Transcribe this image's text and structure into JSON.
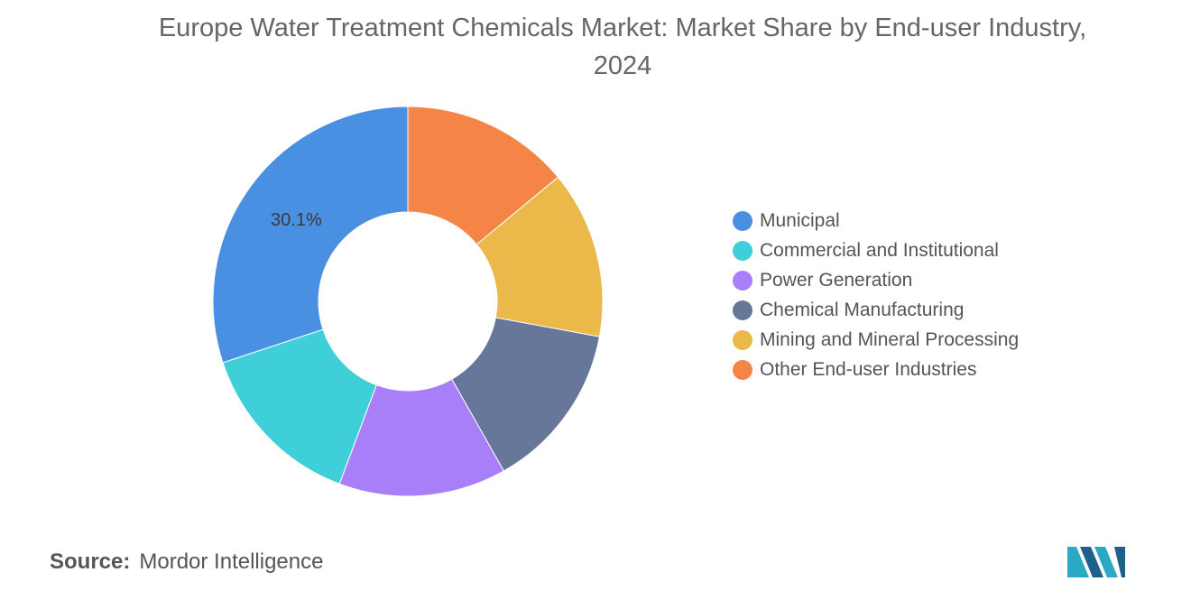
{
  "title": "Europe Water Treatment Chemicals Market: Market Share by End-user Industry, 2024",
  "source": {
    "label": "Source:",
    "text": "Mordor Intelligence"
  },
  "logo": {
    "icon": "mordor-intelligence-logo-icon",
    "colors": [
      "#1f5f8b",
      "#2aa8c4"
    ]
  },
  "chart_data": {
    "type": "pie",
    "variant": "donut",
    "title": "Europe Water Treatment Chemicals Market: Market Share by End-user Industry, 2024",
    "unit": "%",
    "legend_position": "right",
    "start_angle_deg": 0,
    "direction": "counterclockwise",
    "categories": [
      "Municipal",
      "Commercial and Institutional",
      "Power Generation",
      "Chemical Manufacturing",
      "Mining and Mineral Processing",
      "Other End-user Industries"
    ],
    "values": [
      30.1,
      14.2,
      13.9,
      13.9,
      13.9,
      14.0
    ],
    "colors": [
      "#4a90e2",
      "#3fcfd9",
      "#a87ff8",
      "#667799",
      "#eab94a",
      "#f58447"
    ],
    "data_labels": [
      "30.1%",
      "",
      "",
      "",
      "",
      ""
    ]
  }
}
